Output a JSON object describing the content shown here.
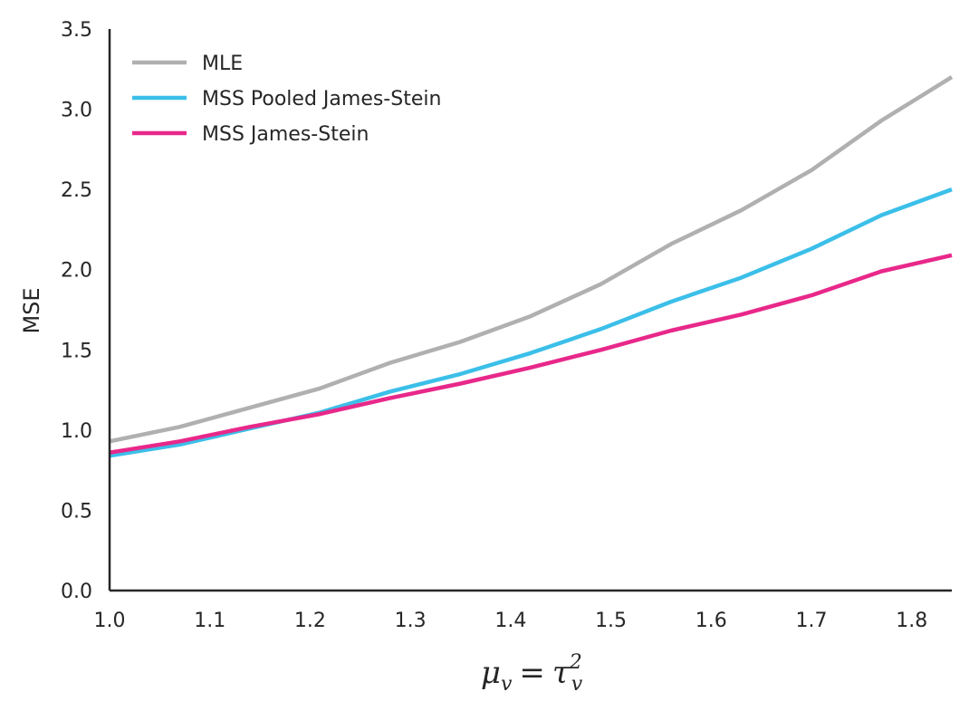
{
  "chart_data": {
    "type": "line",
    "title": "",
    "xlabel": {
      "base": "μ",
      "sub": "v",
      "eq": "=",
      "base2": "τ",
      "sub2": "v",
      "sup2": "2"
    },
    "ylabel": "MSE",
    "xlim": [
      1.0,
      1.84
    ],
    "ylim": [
      0.0,
      3.5
    ],
    "xticks": [
      "1.0",
      "1.1",
      "1.2",
      "1.3",
      "1.4",
      "1.5",
      "1.6",
      "1.7",
      "1.8"
    ],
    "xtick_values": [
      1.0,
      1.1,
      1.2,
      1.3,
      1.4,
      1.5,
      1.6,
      1.7,
      1.8
    ],
    "yticks": [
      "0.0",
      "0.5",
      "1.0",
      "1.5",
      "2.0",
      "2.5",
      "3.0",
      "3.5"
    ],
    "ytick_values": [
      0.0,
      0.5,
      1.0,
      1.5,
      2.0,
      2.5,
      3.0,
      3.5
    ],
    "grid": false,
    "legend_position": "top-left",
    "x": [
      1.0,
      1.07,
      1.14,
      1.21,
      1.28,
      1.35,
      1.42,
      1.49,
      1.56,
      1.63,
      1.7,
      1.77,
      1.84
    ],
    "series": [
      {
        "name": "MLE",
        "color": "#b0b0b0",
        "values": [
          0.93,
          1.02,
          1.14,
          1.26,
          1.42,
          1.55,
          1.71,
          1.91,
          2.16,
          2.37,
          2.62,
          2.93,
          3.2
        ]
      },
      {
        "name": "MSS Pooled James-Stein",
        "color": "#3bbfe9",
        "values": [
          0.84,
          0.91,
          1.01,
          1.11,
          1.24,
          1.35,
          1.48,
          1.63,
          1.8,
          1.95,
          2.13,
          2.34,
          2.5
        ]
      },
      {
        "name": "MSS James-Stein",
        "color": "#e8288a",
        "values": [
          0.86,
          0.93,
          1.02,
          1.1,
          1.2,
          1.29,
          1.39,
          1.5,
          1.62,
          1.72,
          1.84,
          1.99,
          2.09
        ]
      }
    ]
  }
}
